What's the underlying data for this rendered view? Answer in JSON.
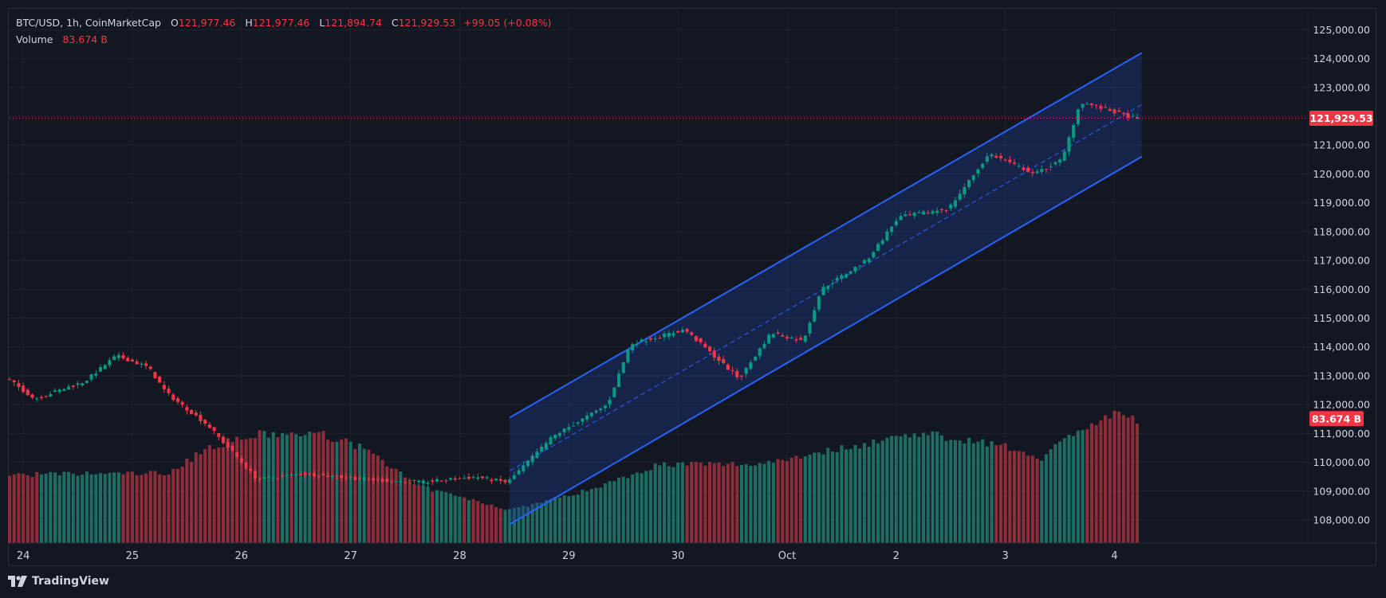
{
  "header": {
    "symbol": "BTC/USD, 1h, CoinMarketCap",
    "o_label": "O",
    "o_value": "121,977.46",
    "h_label": "H",
    "h_value": "121,977.46",
    "l_label": "L",
    "l_value": "121,894.74",
    "c_label": "C",
    "c_value": "121,929.53",
    "change": "+99.05 (+0.08%)",
    "volume_label": "Volume",
    "volume_value": "83.674 B"
  },
  "footer": {
    "brand": "TradingView",
    "logo_icon": "tradingview-logo-icon"
  },
  "colors": {
    "background": "#131722",
    "grid": "#1f232e",
    "text": "#d1d4dc",
    "up": "#089981",
    "down": "#f23645",
    "vol_up": "#1f6c62",
    "vol_down": "#8e2d3a",
    "channel": "#2962ff",
    "channel_fill": "#1e3a8a"
  },
  "chart_data": {
    "type": "candlestick",
    "title": "BTC/USD, 1h, CoinMarketCap",
    "ylim": [
      107200,
      125700
    ],
    "y_ticks": [
      "108,000.00",
      "109,000.00",
      "110,000.00",
      "111,000.00",
      "112,000.00",
      "113,000.00",
      "114,000.00",
      "115,000.00",
      "116,000.00",
      "117,000.00",
      "118,000.00",
      "119,000.00",
      "120,000.00",
      "121,000.00",
      "122,000.00",
      "123,000.00",
      "124,000.00",
      "125,000.00"
    ],
    "y_tick_values": [
      108000,
      109000,
      110000,
      111000,
      112000,
      113000,
      114000,
      115000,
      116000,
      117000,
      118000,
      119000,
      120000,
      121000,
      122000,
      123000,
      124000,
      125000
    ],
    "x_ticks": [
      "24",
      "25",
      "26",
      "27",
      "28",
      "29",
      "30",
      "Oct",
      "2",
      "3",
      "4"
    ],
    "current_price": 121929.53,
    "current_price_label": "121,929.53",
    "volume_badge": "83.674 B",
    "x_start": "2025-09-23 21:00",
    "x_end": "2025-10-04 05:00",
    "channel": {
      "start": "2025-09-28 11:00",
      "end": "2025-10-04 06:00",
      "lower_start": 107850,
      "lower_end": 120600,
      "upper_start": 111550,
      "upper_end": 124200,
      "mid_start": 109700,
      "mid_end": 122400
    },
    "price_path": [
      {
        "x": "2025-09-23 21:00",
        "y": 112900
      },
      {
        "x": "2025-09-24 03:00",
        "y": 112200
      },
      {
        "x": "2025-09-24 14:00",
        "y": 112800
      },
      {
        "x": "2025-09-24 21:00",
        "y": 113700
      },
      {
        "x": "2025-09-25 04:00",
        "y": 113300
      },
      {
        "x": "2025-09-25 08:00",
        "y": 112400
      },
      {
        "x": "2025-09-25 17:00",
        "y": 111300
      },
      {
        "x": "2025-09-26 04:00",
        "y": 109400
      },
      {
        "x": "2025-09-26 14:00",
        "y": 109600
      },
      {
        "x": "2025-09-27 05:00",
        "y": 109400
      },
      {
        "x": "2025-09-27 16:00",
        "y": 109300
      },
      {
        "x": "2025-09-28 04:00",
        "y": 109500
      },
      {
        "x": "2025-09-28 11:00",
        "y": 109300
      },
      {
        "x": "2025-09-28 21:00",
        "y": 110900
      },
      {
        "x": "2025-09-29 09:00",
        "y": 112000
      },
      {
        "x": "2025-09-29 14:00",
        "y": 114100
      },
      {
        "x": "2025-09-30 02:00",
        "y": 114600
      },
      {
        "x": "2025-09-30 14:00",
        "y": 112900
      },
      {
        "x": "2025-09-30 21:00",
        "y": 114500
      },
      {
        "x": "2025-10-01 04:00",
        "y": 114200
      },
      {
        "x": "2025-10-01 08:00",
        "y": 116000
      },
      {
        "x": "2025-10-01 18:00",
        "y": 117000
      },
      {
        "x": "2025-10-02 01:00",
        "y": 118500
      },
      {
        "x": "2025-10-02 12:00",
        "y": 118800
      },
      {
        "x": "2025-10-02 21:00",
        "y": 120700
      },
      {
        "x": "2025-10-03 07:00",
        "y": 120000
      },
      {
        "x": "2025-10-03 13:00",
        "y": 120500
      },
      {
        "x": "2025-10-03 17:00",
        "y": 122500
      },
      {
        "x": "2025-10-04 05:00",
        "y": 121929.53
      }
    ],
    "volume_profile": [
      {
        "x": "2025-09-23 21:00",
        "v": 0.39
      },
      {
        "x": "2025-09-25 08:00",
        "v": 0.4
      },
      {
        "x": "2025-09-25 17:00",
        "v": 0.55
      },
      {
        "x": "2025-09-26 04:00",
        "v": 0.62
      },
      {
        "x": "2025-09-26 18:00",
        "v": 0.62
      },
      {
        "x": "2025-09-27 05:00",
        "v": 0.52
      },
      {
        "x": "2025-09-27 14:00",
        "v": 0.33
      },
      {
        "x": "2025-09-28 11:00",
        "v": 0.19
      },
      {
        "x": "2025-09-29 04:00",
        "v": 0.3
      },
      {
        "x": "2025-09-29 20:00",
        "v": 0.45
      },
      {
        "x": "2025-09-30 17:00",
        "v": 0.45
      },
      {
        "x": "2025-10-01 18:00",
        "v": 0.57
      },
      {
        "x": "2025-10-02 04:00",
        "v": 0.63
      },
      {
        "x": "2025-10-02 21:00",
        "v": 0.57
      },
      {
        "x": "2025-10-03 08:00",
        "v": 0.49
      },
      {
        "x": "2025-10-03 15:00",
        "v": 0.63
      },
      {
        "x": "2025-10-04 00:00",
        "v": 0.73
      },
      {
        "x": "2025-10-04 05:00",
        "v": 0.71
      }
    ]
  }
}
